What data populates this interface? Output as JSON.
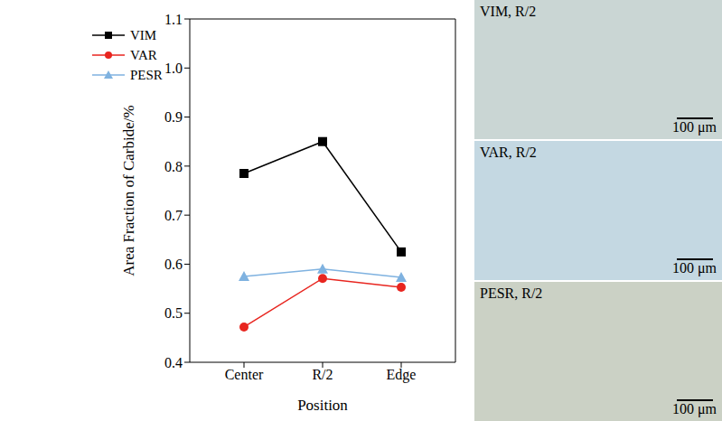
{
  "chart_data": {
    "type": "line",
    "categories": [
      "Center",
      "R/2",
      "Edge"
    ],
    "x_label": "Position",
    "y_label": "Area Fraction of Carbide/%",
    "ylim": [
      0.4,
      1.1
    ],
    "yticks": [
      0.4,
      0.5,
      0.6,
      0.7,
      0.8,
      0.9,
      {
        "value": 1,
        "label": "1.0"
      },
      1.1
    ],
    "grid": false,
    "legend": "top-left",
    "series": [
      {
        "name": "VIM",
        "color": "#000000",
        "marker": "square",
        "values": [
          0.785,
          0.85,
          0.625
        ]
      },
      {
        "name": "VAR",
        "color": "#e8251f",
        "marker": "circle",
        "values": [
          0.472,
          0.571,
          0.553
        ]
      },
      {
        "name": "PESR",
        "color": "#7fb2e0",
        "marker": "triangle",
        "values": [
          0.575,
          0.59,
          0.573
        ]
      }
    ]
  },
  "panels": [
    {
      "label": "VIM, R/2",
      "scale_bar": "100 μm"
    },
    {
      "label": "VAR, R/2",
      "scale_bar": "100 μm"
    },
    {
      "label": "PESR, R/2",
      "scale_bar": "100 μm"
    }
  ]
}
